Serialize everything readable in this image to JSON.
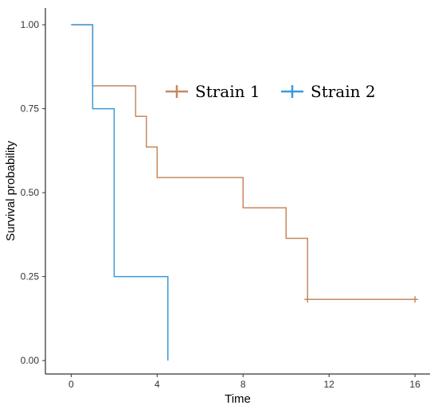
{
  "chart_data": {
    "type": "line",
    "title": "",
    "xlabel": "Time",
    "ylabel": "Survival probability",
    "xlim": [
      -1.2,
      16.7
    ],
    "ylim": [
      -0.04,
      1.05
    ],
    "x_ticks": [
      0,
      4,
      8,
      12,
      16
    ],
    "x_tick_labels": [
      "0",
      "4",
      "8",
      "12",
      "16"
    ],
    "y_ticks": [
      0,
      0.25,
      0.5,
      0.75,
      1.0
    ],
    "y_tick_labels": [
      "0.00",
      "0.25",
      "0.50",
      "0.75",
      "1.00"
    ],
    "grid": false,
    "legend_position": "top-right, inside plot",
    "series": [
      {
        "name": "Strain 1",
        "color": "#c8875f",
        "step": true,
        "x": [
          0,
          1,
          3,
          3.5,
          4,
          8,
          10,
          11,
          16
        ],
        "y": [
          1.0,
          0.818,
          0.727,
          0.636,
          0.545,
          0.455,
          0.364,
          0.182,
          0.182
        ],
        "censored": [
          {
            "x": 11,
            "y": 0.182
          },
          {
            "x": 16,
            "y": 0.182
          }
        ]
      },
      {
        "name": "Strain 2",
        "color": "#3a9ad9",
        "step": true,
        "x": [
          0,
          1,
          2,
          4.5
        ],
        "y": [
          1.0,
          0.75,
          0.25,
          0.0
        ],
        "censored": []
      }
    ]
  }
}
